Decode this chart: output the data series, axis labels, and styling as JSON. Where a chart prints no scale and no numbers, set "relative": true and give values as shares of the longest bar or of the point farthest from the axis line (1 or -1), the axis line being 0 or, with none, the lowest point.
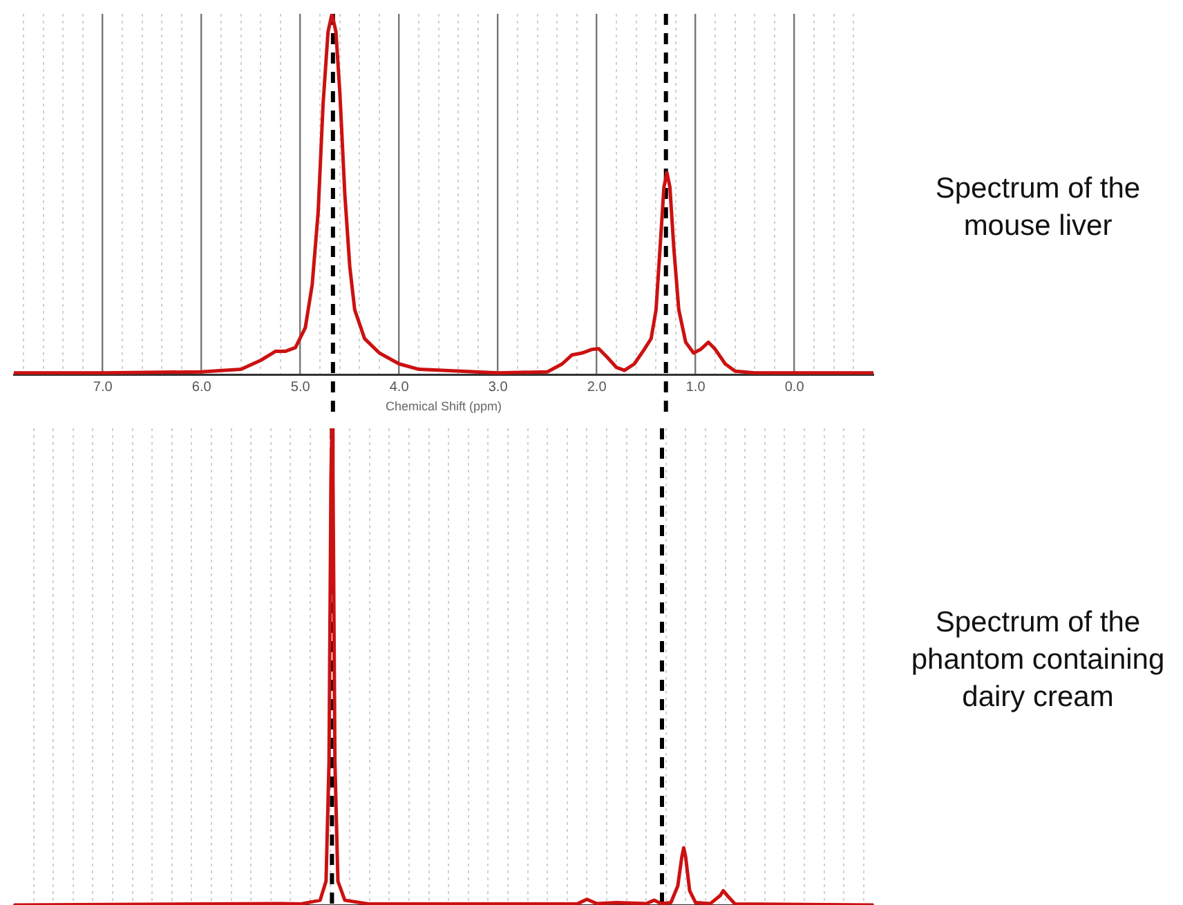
{
  "chart_data": [
    {
      "type": "line",
      "xlabel": "Chemical Shift (ppm)",
      "relative": true,
      "legend": false,
      "grid": "x",
      "tick_labels": "x",
      "marker": "none",
      "line_style": "solid",
      "annotations": [
        "Spectrum of the mouse liver"
      ],
      "xlim": [
        7.9,
        -0.8
      ],
      "xticks": [
        {
          "value": 7.8,
          "label": null
        },
        {
          "value": 7.6,
          "label": null
        },
        {
          "value": 7.4,
          "label": null
        },
        {
          "value": 7.2,
          "label": null
        },
        {
          "value": 7,
          "label": "7.0"
        },
        {
          "value": 6.8,
          "label": null
        },
        {
          "value": 6.6,
          "label": null
        },
        {
          "value": 6.4,
          "label": null
        },
        {
          "value": 6.2,
          "label": null
        },
        {
          "value": 6,
          "label": "6.0"
        },
        {
          "value": 5.8,
          "label": null
        },
        {
          "value": 5.6,
          "label": null
        },
        {
          "value": 5.4,
          "label": null
        },
        {
          "value": 5.2,
          "label": null
        },
        {
          "value": 5,
          "label": "5.0"
        },
        {
          "value": 4.8,
          "label": null
        },
        {
          "value": 4.6,
          "label": null
        },
        {
          "value": 4.4,
          "label": null
        },
        {
          "value": 4.2,
          "label": null
        },
        {
          "value": 4,
          "label": "4.0"
        },
        {
          "value": 3.8,
          "label": null
        },
        {
          "value": 3.6,
          "label": null
        },
        {
          "value": 3.4,
          "label": null
        },
        {
          "value": 3.2,
          "label": null
        },
        {
          "value": 3,
          "label": "3.0"
        },
        {
          "value": 2.8,
          "label": null
        },
        {
          "value": 2.6,
          "label": null
        },
        {
          "value": 2.4,
          "label": null
        },
        {
          "value": 2.2,
          "label": null
        },
        {
          "value": 2,
          "label": "2.0"
        },
        {
          "value": 1.8,
          "label": null
        },
        {
          "value": 1.6,
          "label": null
        },
        {
          "value": 1.4,
          "label": null
        },
        {
          "value": 1.2,
          "label": null
        },
        {
          "value": 1,
          "label": "1.0"
        },
        {
          "value": 0.8,
          "label": null
        },
        {
          "value": 0.6,
          "label": null
        },
        {
          "value": 0.4,
          "label": null
        },
        {
          "value": 0.2,
          "label": null
        },
        {
          "value": 0,
          "label": "0.0"
        },
        {
          "value": -0.2,
          "label": null
        },
        {
          "value": -0.4,
          "label": null
        },
        {
          "value": -0.6,
          "label": null
        }
      ],
      "ref_lines": [
        {
          "axis": "x",
          "value": 4.67,
          "color": "#000000",
          "line_style": "dashed"
        },
        {
          "axis": "x",
          "value": 1.3,
          "color": "#000000",
          "line_style": "dashed"
        }
      ],
      "series": [
        {
          "color": "#cc1111",
          "x": [
            7.9,
            7.0,
            6.0,
            5.6,
            5.4,
            5.25,
            5.15,
            5.05,
            4.95,
            4.88,
            4.82,
            4.77,
            4.72,
            4.68,
            4.64,
            4.6,
            4.55,
            4.5,
            4.45,
            4.35,
            4.2,
            4.0,
            3.8,
            3.0,
            2.5,
            2.35,
            2.25,
            2.15,
            2.05,
            1.98,
            1.9,
            1.8,
            1.72,
            1.62,
            1.52,
            1.45,
            1.4,
            1.36,
            1.32,
            1.29,
            1.26,
            1.22,
            1.17,
            1.1,
            1.02,
            0.95,
            0.87,
            0.8,
            0.7,
            0.6,
            0.4,
            0.0,
            -0.8
          ],
          "values": [
            0.005,
            0.005,
            0.008,
            0.015,
            0.04,
            0.065,
            0.065,
            0.075,
            0.13,
            0.25,
            0.45,
            0.75,
            0.95,
            1.0,
            0.95,
            0.78,
            0.5,
            0.3,
            0.18,
            0.1,
            0.06,
            0.03,
            0.015,
            0.005,
            0.008,
            0.03,
            0.055,
            0.06,
            0.07,
            0.072,
            0.05,
            0.02,
            0.012,
            0.03,
            0.07,
            0.1,
            0.18,
            0.35,
            0.52,
            0.56,
            0.52,
            0.35,
            0.18,
            0.09,
            0.06,
            0.07,
            0.09,
            0.07,
            0.03,
            0.01,
            0.005,
            0.005,
            0.005
          ]
        }
      ]
    },
    {
      "type": "line",
      "relative": true,
      "legend": false,
      "grid": "x",
      "tick_labels": false,
      "marker": "none",
      "line_style": "solid",
      "annotations": [
        "Spectrum of the phantom containing dairy cream"
      ],
      "xlim": [
        7.9,
        -0.8
      ],
      "xticks": [
        {
          "value": 7.7,
          "label": null
        },
        {
          "value": 7.5,
          "label": null
        },
        {
          "value": 7.3,
          "label": null
        },
        {
          "value": 7.1,
          "label": null
        },
        {
          "value": 6.9,
          "label": null
        },
        {
          "value": 6.7,
          "label": null
        },
        {
          "value": 6.5,
          "label": null
        },
        {
          "value": 6.3,
          "label": null
        },
        {
          "value": 6.1,
          "label": null
        },
        {
          "value": 5.9,
          "label": null
        },
        {
          "value": 5.7,
          "label": null
        },
        {
          "value": 5.5,
          "label": null
        },
        {
          "value": 5.3,
          "label": null
        },
        {
          "value": 5.1,
          "label": null
        },
        {
          "value": 4.9,
          "label": null
        },
        {
          "value": 4.7,
          "label": null
        },
        {
          "value": 4.5,
          "label": null
        },
        {
          "value": 4.3,
          "label": null
        },
        {
          "value": 4.1,
          "label": null
        },
        {
          "value": 3.9,
          "label": null
        },
        {
          "value": 3.7,
          "label": null
        },
        {
          "value": 3.5,
          "label": null
        },
        {
          "value": 3.3,
          "label": null
        },
        {
          "value": 3.1,
          "label": null
        },
        {
          "value": 2.9,
          "label": null
        },
        {
          "value": 2.7,
          "label": null
        },
        {
          "value": 2.5,
          "label": null
        },
        {
          "value": 2.3,
          "label": null
        },
        {
          "value": 2.1,
          "label": null
        },
        {
          "value": 1.9,
          "label": null
        },
        {
          "value": 1.7,
          "label": null
        },
        {
          "value": 1.5,
          "label": null
        },
        {
          "value": 1.3,
          "label": null
        },
        {
          "value": 1.1,
          "label": null
        },
        {
          "value": 0.9,
          "label": null
        },
        {
          "value": 0.7,
          "label": null
        },
        {
          "value": 0.5,
          "label": null
        },
        {
          "value": 0.3,
          "label": null
        },
        {
          "value": 0.1,
          "label": null
        },
        {
          "value": -0.1,
          "label": null
        },
        {
          "value": -0.3,
          "label": null
        },
        {
          "value": -0.5,
          "label": null
        },
        {
          "value": -0.7,
          "label": null
        }
      ],
      "ref_lines": [
        {
          "axis": "x",
          "value": 4.68,
          "color": "#000000",
          "line_style": "dashed"
        },
        {
          "axis": "x",
          "value": 1.34,
          "color": "#000000",
          "line_style": "dashed"
        }
      ],
      "series": [
        {
          "color": "#cc1111",
          "x": [
            7.9,
            5.2,
            5.0,
            4.8,
            4.74,
            4.71,
            4.69,
            4.68,
            4.67,
            4.65,
            4.62,
            4.55,
            4.3,
            2.2,
            2.1,
            2.0,
            1.8,
            1.5,
            1.42,
            1.35,
            1.25,
            1.18,
            1.14,
            1.12,
            1.1,
            1.06,
            1.0,
            0.85,
            0.75,
            0.72,
            0.68,
            0.6,
            -0.8
          ],
          "values": [
            0,
            0.003,
            0.002,
            0.01,
            0.05,
            0.3,
            0.9,
            1.0,
            0.9,
            0.3,
            0.05,
            0.01,
            0.002,
            0.002,
            0.012,
            0.003,
            0.005,
            0.003,
            0.01,
            0.003,
            0.005,
            0.04,
            0.1,
            0.12,
            0.1,
            0.03,
            0.005,
            0.003,
            0.02,
            0.03,
            0.02,
            0.002,
            0
          ]
        }
      ]
    }
  ]
}
